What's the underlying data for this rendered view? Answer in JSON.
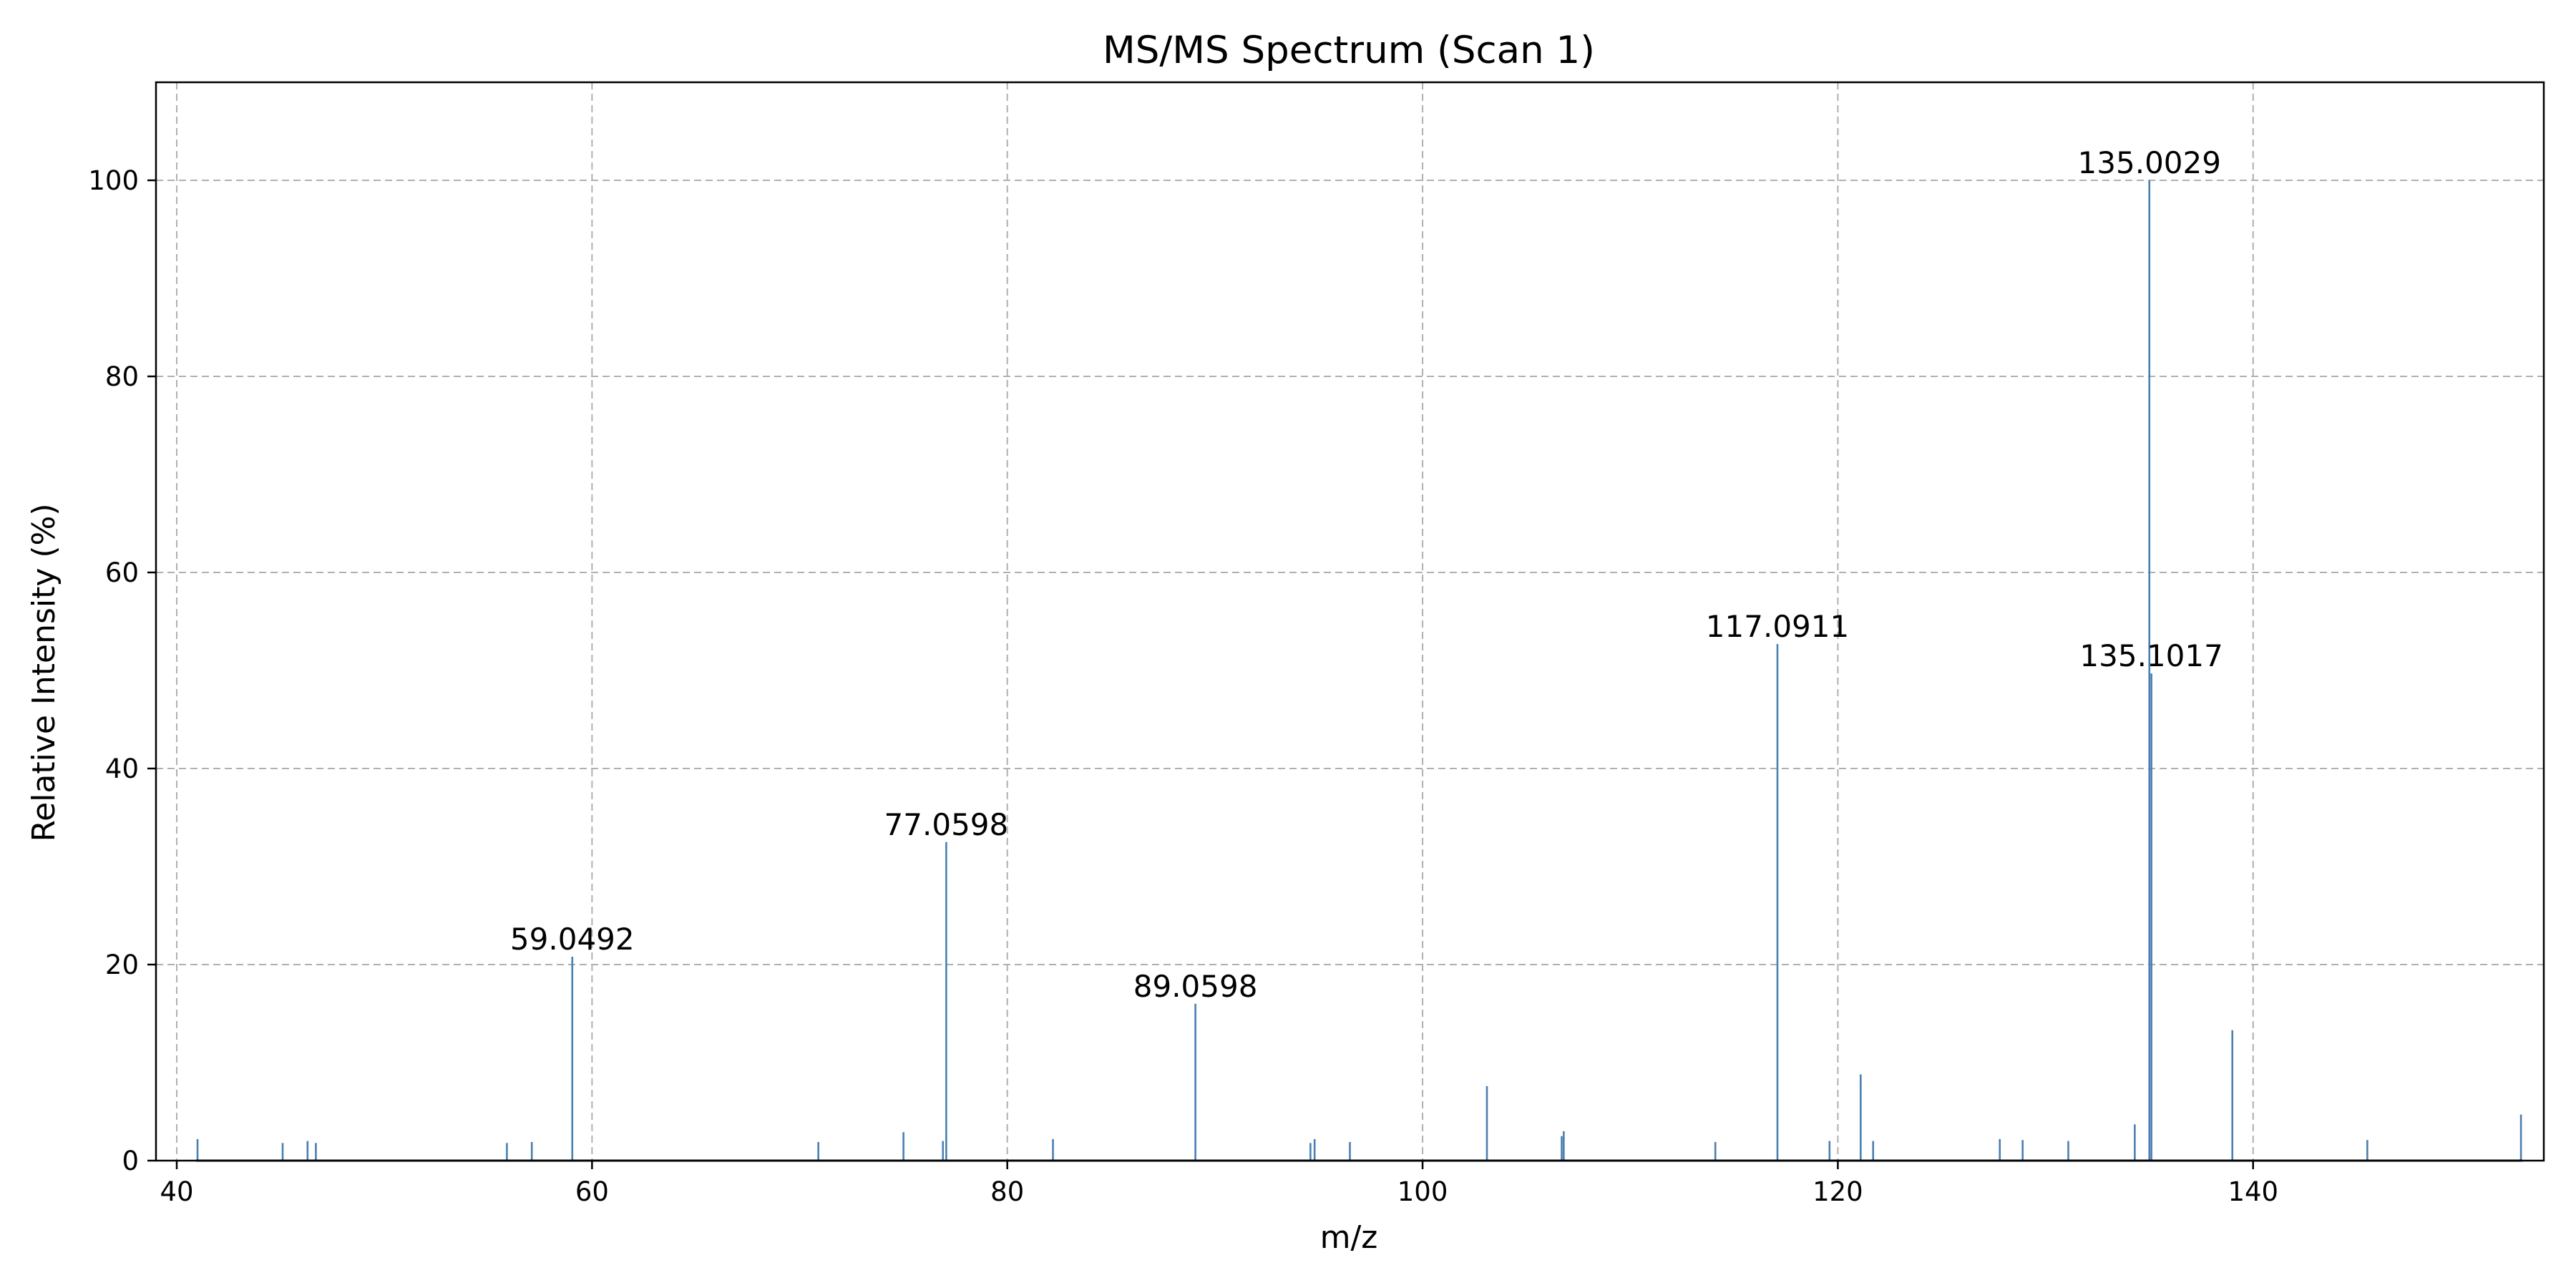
{
  "chart_data": {
    "type": "bar",
    "title": "MS/MS Spectrum (Scan 1)",
    "xlabel": "m/z",
    "ylabel": "Relative Intensity (%)",
    "xlim": [
      39,
      154
    ],
    "ylim": [
      0,
      110
    ],
    "grid": true,
    "xticks": [
      40,
      60,
      80,
      100,
      120,
      140
    ],
    "yticks": [
      0,
      20,
      40,
      60,
      80,
      100
    ],
    "bar_color": "#4a7fb0",
    "series": [
      {
        "points": [
          {
            "mz": 41.0,
            "intensity": 2.2
          },
          {
            "mz": 45.1,
            "intensity": 1.8
          },
          {
            "mz": 46.3,
            "intensity": 2.0
          },
          {
            "mz": 46.7,
            "intensity": 1.8
          },
          {
            "mz": 55.9,
            "intensity": 1.8
          },
          {
            "mz": 57.1,
            "intensity": 1.9
          },
          {
            "mz": 59.0492,
            "intensity": 20.8
          },
          {
            "mz": 70.9,
            "intensity": 1.9
          },
          {
            "mz": 75.0,
            "intensity": 2.9
          },
          {
            "mz": 76.9,
            "intensity": 2.0
          },
          {
            "mz": 77.0598,
            "intensity": 32.5
          },
          {
            "mz": 82.2,
            "intensity": 2.2
          },
          {
            "mz": 89.0598,
            "intensity": 16.0
          },
          {
            "mz": 94.6,
            "intensity": 1.8
          },
          {
            "mz": 94.8,
            "intensity": 2.2
          },
          {
            "mz": 96.5,
            "intensity": 1.9
          },
          {
            "mz": 103.1,
            "intensity": 7.6
          },
          {
            "mz": 106.7,
            "intensity": 2.5
          },
          {
            "mz": 106.8,
            "intensity": 3.0
          },
          {
            "mz": 114.1,
            "intensity": 1.9
          },
          {
            "mz": 117.0911,
            "intensity": 52.7
          },
          {
            "mz": 119.6,
            "intensity": 2.0
          },
          {
            "mz": 121.1,
            "intensity": 8.8
          },
          {
            "mz": 121.7,
            "intensity": 2.0
          },
          {
            "mz": 127.8,
            "intensity": 2.2
          },
          {
            "mz": 128.9,
            "intensity": 2.1
          },
          {
            "mz": 131.1,
            "intensity": 2.0
          },
          {
            "mz": 134.3,
            "intensity": 3.7
          },
          {
            "mz": 135.0029,
            "intensity": 100.0
          },
          {
            "mz": 135.1017,
            "intensity": 49.7
          },
          {
            "mz": 139.0,
            "intensity": 13.3
          },
          {
            "mz": 145.5,
            "intensity": 2.1
          },
          {
            "mz": 152.9,
            "intensity": 4.7
          }
        ]
      }
    ],
    "annotations": [
      {
        "label": "59.0492",
        "mz": 59.0492,
        "intensity": 20.8
      },
      {
        "label": "77.0598",
        "mz": 77.0598,
        "intensity": 32.5
      },
      {
        "label": "89.0598",
        "mz": 89.0598,
        "intensity": 16.0
      },
      {
        "label": "117.0911",
        "mz": 117.0911,
        "intensity": 52.7
      },
      {
        "label": "135.0029",
        "mz": 135.0029,
        "intensity": 100.0
      },
      {
        "label": "135.1017",
        "mz": 135.1017,
        "intensity": 49.7
      }
    ]
  }
}
